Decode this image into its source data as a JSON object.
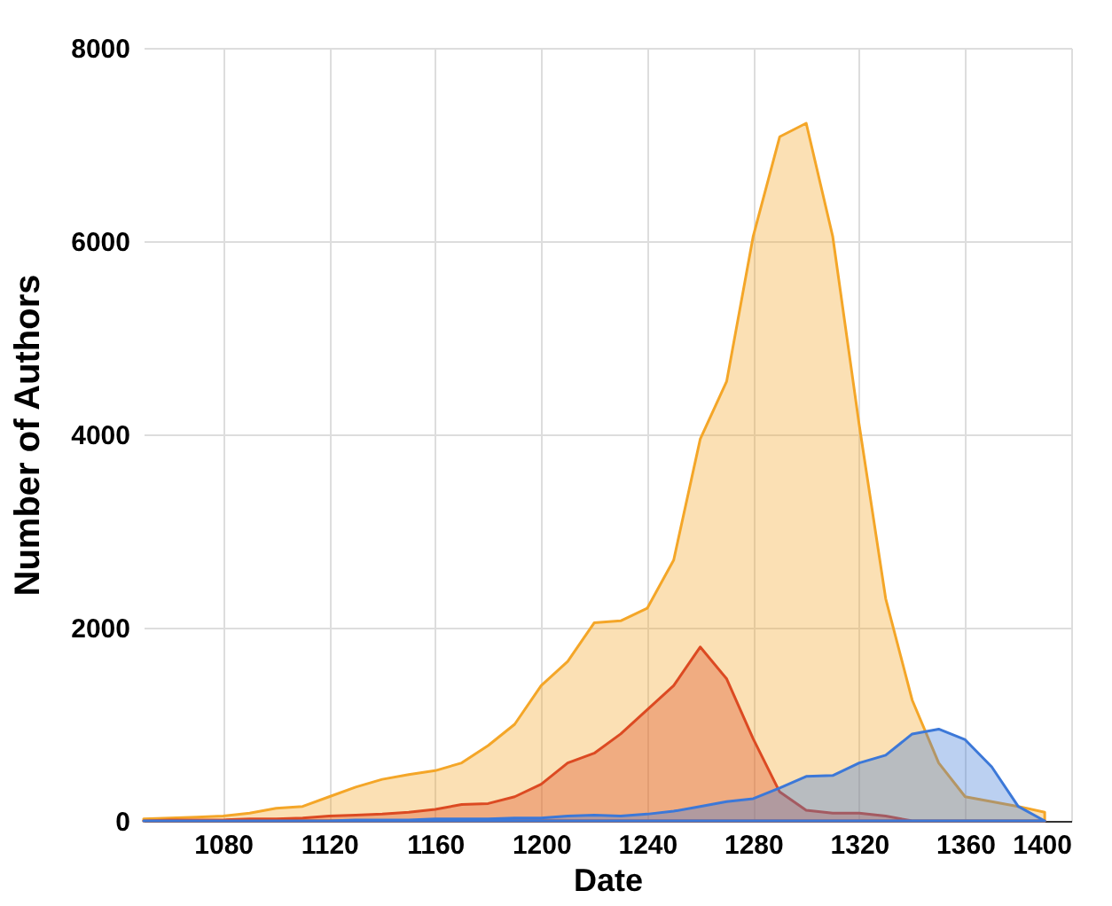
{
  "chart_data": {
    "type": "area",
    "xlabel": "Date",
    "ylabel": "Number of Authors",
    "x": [
      1050,
      1060,
      1070,
      1080,
      1090,
      1100,
      1110,
      1120,
      1130,
      1140,
      1150,
      1160,
      1170,
      1180,
      1190,
      1200,
      1210,
      1220,
      1230,
      1240,
      1250,
      1260,
      1270,
      1280,
      1290,
      1300,
      1310,
      1320,
      1330,
      1340,
      1350,
      1360,
      1370,
      1380,
      1390
    ],
    "series": [
      {
        "color": "#f4a628",
        "values": [
          20,
          30,
          40,
          50,
          80,
          130,
          150,
          250,
          350,
          430,
          480,
          520,
          600,
          780,
          1000,
          1400,
          1650,
          2050,
          2070,
          2200,
          2700,
          3950,
          4550,
          6050,
          7080,
          7220,
          6050,
          4100,
          2300,
          1250,
          600,
          250,
          200,
          150,
          90
        ]
      },
      {
        "color": "#dc4a22",
        "values": [
          0,
          10,
          10,
          10,
          20,
          20,
          30,
          50,
          60,
          70,
          90,
          120,
          170,
          180,
          250,
          380,
          600,
          700,
          900,
          1150,
          1400,
          1800,
          1470,
          850,
          300,
          110,
          80,
          80,
          50,
          0,
          0,
          0,
          0,
          0,
          0
        ]
      },
      {
        "color": "#3c78d8",
        "values": [
          0,
          0,
          0,
          0,
          0,
          0,
          0,
          0,
          10,
          10,
          10,
          20,
          20,
          20,
          30,
          30,
          50,
          60,
          50,
          70,
          100,
          150,
          200,
          230,
          340,
          460,
          470,
          600,
          680,
          900,
          950,
          840,
          560,
          150,
          0
        ]
      }
    ],
    "xlim": [
      1050,
      1400
    ],
    "xticks": [
      1080,
      1120,
      1160,
      1200,
      1240,
      1280,
      1320,
      1360,
      1400
    ],
    "ylim": [
      0,
      8000
    ],
    "yticks": [
      0,
      2000,
      4000,
      6000,
      8000
    ],
    "grid": true,
    "legend": false
  }
}
